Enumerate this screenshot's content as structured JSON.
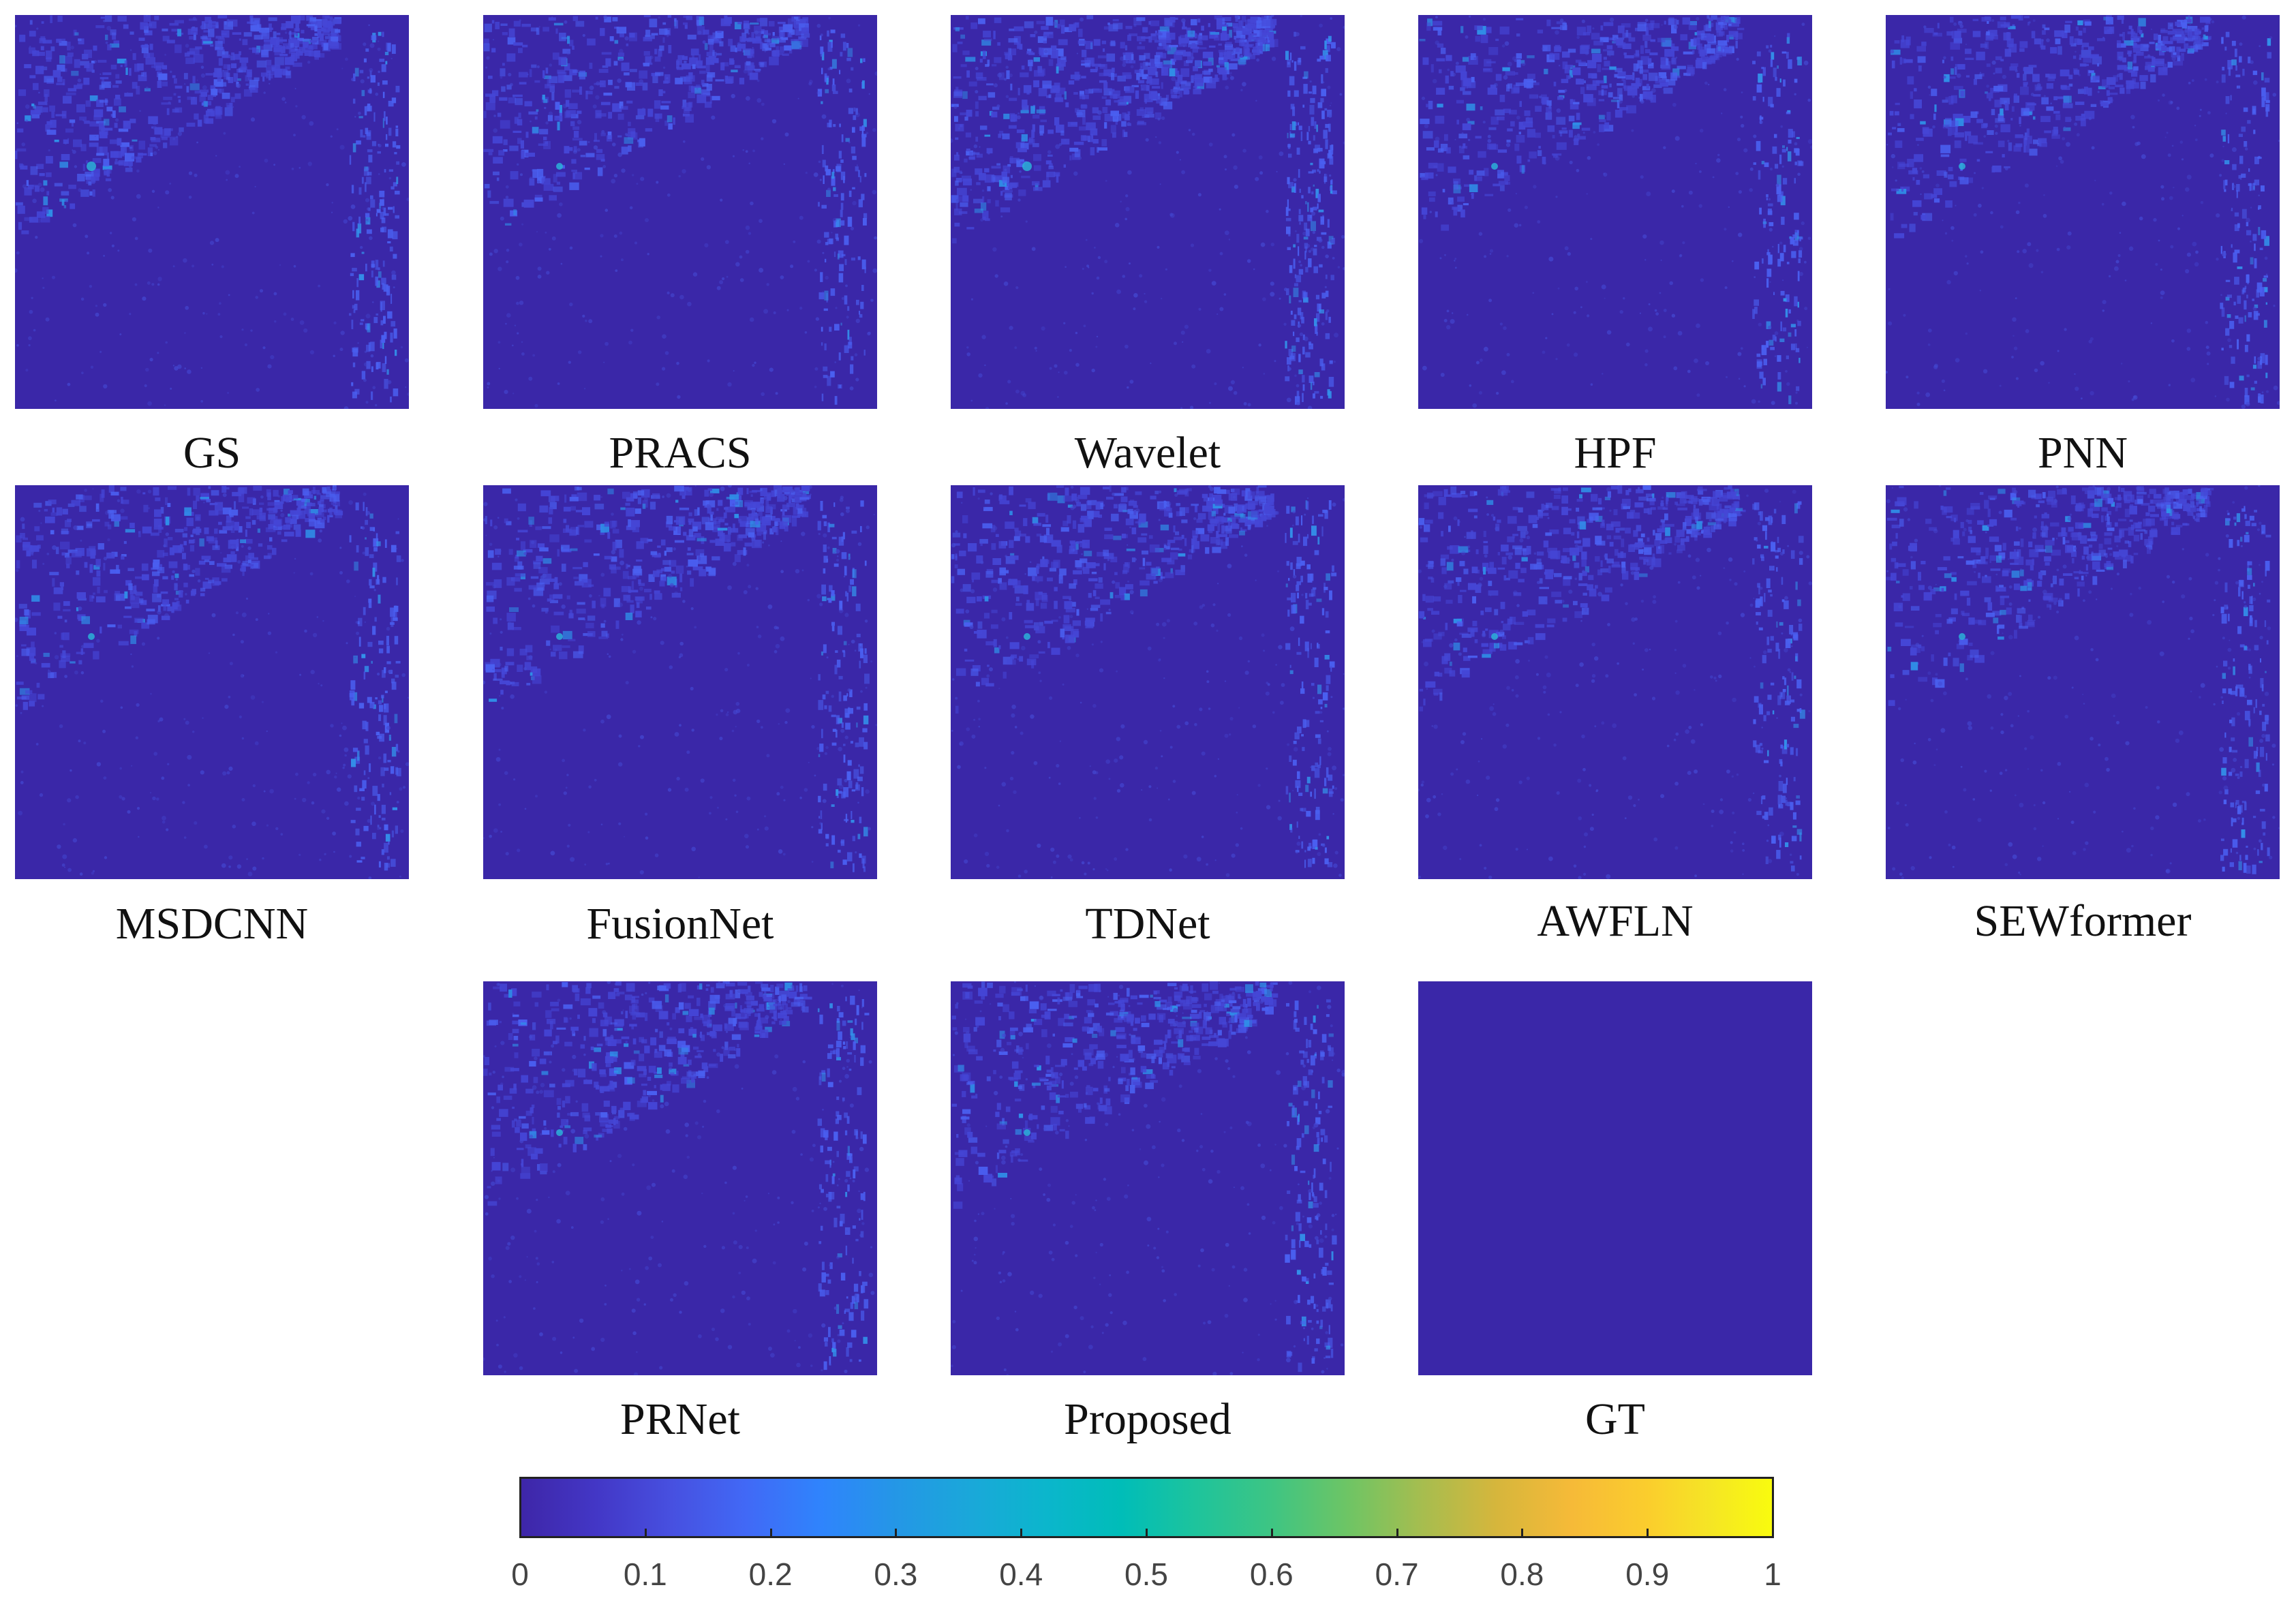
{
  "panels": [
    {
      "label": "GS"
    },
    {
      "label": "PRACS"
    },
    {
      "label": "Wavelet"
    },
    {
      "label": "HPF"
    },
    {
      "label": "PNN"
    },
    {
      "label": "MSDCNN"
    },
    {
      "label": "FusionNet"
    },
    {
      "label": "TDNet"
    },
    {
      "label": "AWFLN"
    },
    {
      "label": "SEWformer"
    },
    {
      "label": "PRNet"
    },
    {
      "label": "Proposed"
    },
    {
      "label": "GT"
    }
  ],
  "colorbar": {
    "colormap": "parula",
    "min": 0,
    "max": 1,
    "tick_labels": [
      "0",
      "0.1",
      "0.2",
      "0.3",
      "0.4",
      "0.5",
      "0.6",
      "0.7",
      "0.8",
      "0.9",
      "1"
    ]
  },
  "colors": {
    "background_low": "#3a27a8",
    "texture_mid": "#4a55e8",
    "highlight": "#2fa0e8"
  }
}
